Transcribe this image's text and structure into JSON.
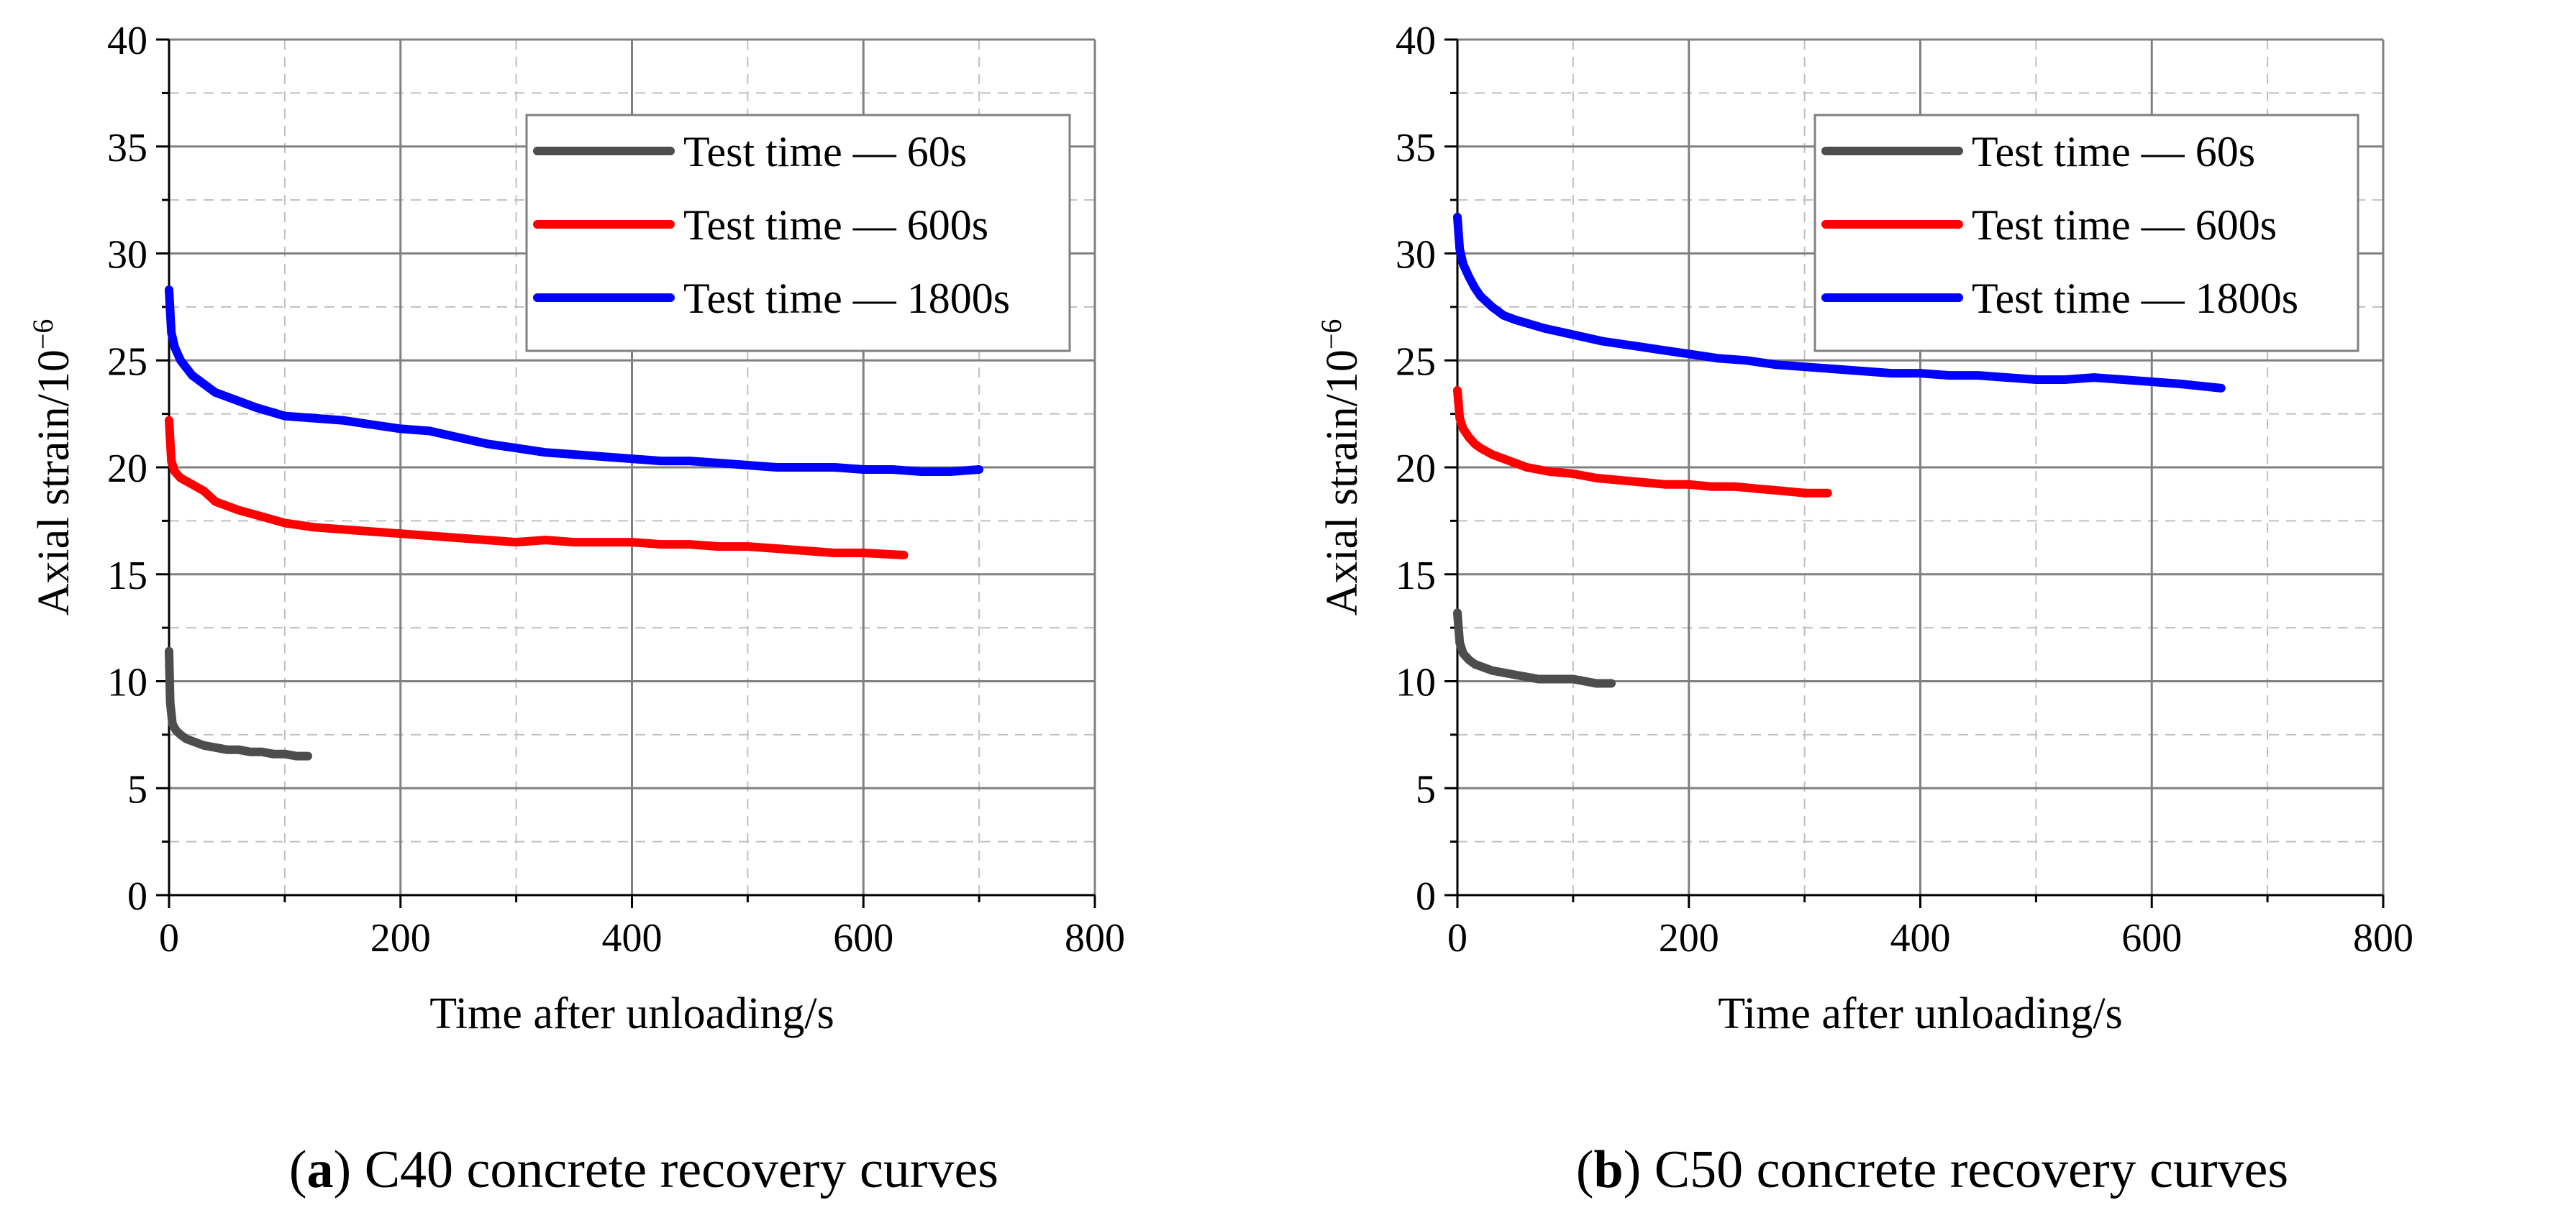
{
  "chart_data": [
    {
      "type": "line",
      "panel_letter": "a",
      "caption": "C40 concrete recovery curves",
      "xlabel": "Time after unloading/s",
      "ylabel": "Axial strain/10",
      "ylabel_exp": "−6",
      "xlim": [
        0,
        800
      ],
      "ylim": [
        0,
        40
      ],
      "xticks": [
        0,
        200,
        400,
        600,
        800
      ],
      "yticks": [
        0,
        5,
        10,
        15,
        20,
        25,
        30,
        35,
        40
      ],
      "grid": true,
      "legend": "top-right",
      "series": [
        {
          "name": "Test time — 60s",
          "color": "#4d4d4d",
          "x": [
            0,
            1,
            3,
            6,
            10,
            15,
            20,
            30,
            40,
            50,
            60,
            70,
            80,
            90,
            100,
            110,
            120
          ],
          "y": [
            11.4,
            9.0,
            8.0,
            7.7,
            7.5,
            7.3,
            7.2,
            7.0,
            6.9,
            6.8,
            6.8,
            6.7,
            6.7,
            6.6,
            6.6,
            6.5,
            6.5
          ]
        },
        {
          "name": "Test time — 600s",
          "color": "#ff0000",
          "x": [
            0,
            2,
            5,
            10,
            20,
            30,
            40,
            60,
            80,
            100,
            125,
            150,
            175,
            200,
            225,
            250,
            275,
            300,
            325,
            350,
            375,
            400,
            425,
            450,
            475,
            500,
            525,
            550,
            575,
            600,
            635
          ],
          "y": [
            22.2,
            20.3,
            19.8,
            19.5,
            19.2,
            18.9,
            18.4,
            18.0,
            17.7,
            17.4,
            17.2,
            17.1,
            17.0,
            16.9,
            16.8,
            16.7,
            16.6,
            16.5,
            16.6,
            16.5,
            16.5,
            16.5,
            16.4,
            16.4,
            16.3,
            16.3,
            16.2,
            16.1,
            16.0,
            16.0,
            15.9
          ]
        },
        {
          "name": "Test time — 1800s",
          "color": "#0000ff",
          "x": [
            0,
            2,
            5,
            10,
            20,
            30,
            40,
            50,
            75,
            100,
            125,
            150,
            175,
            200,
            225,
            250,
            275,
            300,
            325,
            350,
            375,
            400,
            425,
            450,
            475,
            500,
            525,
            550,
            575,
            600,
            625,
            650,
            675,
            700
          ],
          "y": [
            28.3,
            26.3,
            25.6,
            25.0,
            24.3,
            23.9,
            23.5,
            23.3,
            22.8,
            22.4,
            22.3,
            22.2,
            22.0,
            21.8,
            21.7,
            21.4,
            21.1,
            20.9,
            20.7,
            20.6,
            20.5,
            20.4,
            20.3,
            20.3,
            20.2,
            20.1,
            20.0,
            20.0,
            20.0,
            19.9,
            19.9,
            19.8,
            19.8,
            19.9
          ]
        }
      ]
    },
    {
      "type": "line",
      "panel_letter": "b",
      "caption": "C50 concrete recovery curves",
      "xlabel": "Time after unloading/s",
      "ylabel": "Axial strain/10",
      "ylabel_exp": "−6",
      "xlim": [
        0,
        800
      ],
      "ylim": [
        0,
        40
      ],
      "xticks": [
        0,
        200,
        400,
        600,
        800
      ],
      "yticks": [
        0,
        5,
        10,
        15,
        20,
        25,
        30,
        35,
        40
      ],
      "grid": true,
      "legend": "top-right",
      "series": [
        {
          "name": "Test time — 60s",
          "color": "#4d4d4d",
          "x": [
            0,
            2,
            5,
            10,
            15,
            20,
            30,
            40,
            50,
            60,
            70,
            80,
            90,
            100,
            110,
            120,
            133
          ],
          "y": [
            13.2,
            11.8,
            11.3,
            11.0,
            10.8,
            10.7,
            10.5,
            10.4,
            10.3,
            10.2,
            10.1,
            10.1,
            10.1,
            10.1,
            10.0,
            9.9,
            9.9
          ]
        },
        {
          "name": "Test time — 600s",
          "color": "#ff0000",
          "x": [
            0,
            2,
            5,
            10,
            15,
            20,
            30,
            40,
            50,
            60,
            80,
            100,
            120,
            140,
            160,
            180,
            200,
            220,
            240,
            260,
            280,
            300,
            320
          ],
          "y": [
            23.6,
            22.3,
            21.8,
            21.4,
            21.1,
            20.9,
            20.6,
            20.4,
            20.2,
            20.0,
            19.8,
            19.7,
            19.5,
            19.4,
            19.3,
            19.2,
            19.2,
            19.1,
            19.1,
            19.0,
            18.9,
            18.8,
            18.8
          ]
        },
        {
          "name": "Test time — 1800s",
          "color": "#0000ff",
          "x": [
            0,
            2,
            5,
            10,
            15,
            20,
            30,
            40,
            50,
            75,
            100,
            125,
            150,
            175,
            200,
            225,
            250,
            275,
            300,
            325,
            350,
            375,
            400,
            425,
            450,
            475,
            500,
            525,
            550,
            575,
            600,
            625,
            660
          ],
          "y": [
            31.7,
            30.2,
            29.5,
            28.9,
            28.4,
            28.0,
            27.5,
            27.1,
            26.9,
            26.5,
            26.2,
            25.9,
            25.7,
            25.5,
            25.3,
            25.1,
            25.0,
            24.8,
            24.7,
            24.6,
            24.5,
            24.4,
            24.4,
            24.3,
            24.3,
            24.2,
            24.1,
            24.1,
            24.2,
            24.1,
            24.0,
            23.9,
            23.7
          ]
        }
      ]
    }
  ]
}
